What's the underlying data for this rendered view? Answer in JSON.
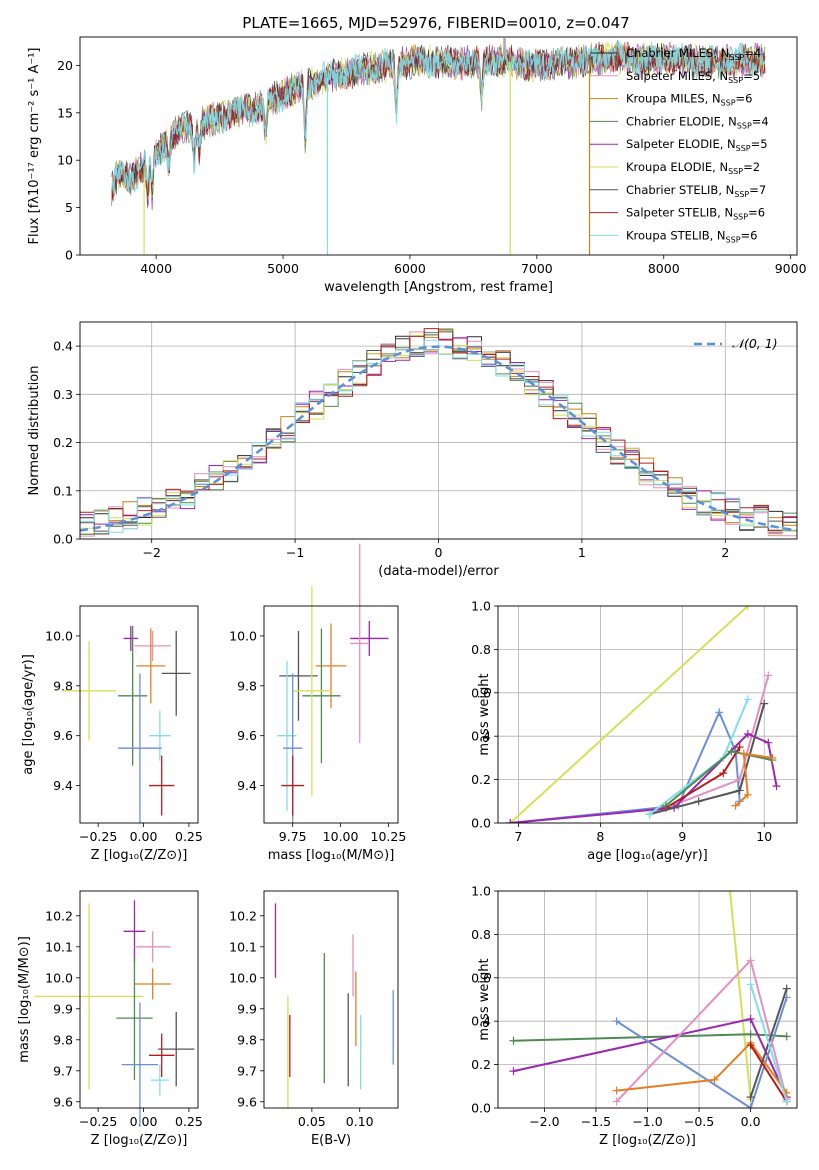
{
  "title": "PLATE=1665, MJD=52976, FIBERID=0010, z=0.047",
  "legend_spectrum": [
    {
      "label": "Chabrier MILES, N",
      "n": "4",
      "color": "#2b2b2b"
    },
    {
      "label": "Salpeter MILES, N",
      "n": "5",
      "color": "#e58fc3"
    },
    {
      "label": "Kroupa MILES, N",
      "n": "6",
      "color": "#c68414"
    },
    {
      "label": "Chabrier ELODIE, N",
      "n": "4",
      "color": "#4f8a4f"
    },
    {
      "label": "Salpeter ELODIE, N",
      "n": "5",
      "color": "#9b27b0"
    },
    {
      "label": "Kroupa ELODIE, N",
      "n": "2",
      "color": "#d4e157"
    },
    {
      "label": "Chabrier STELIB, N",
      "n": "7",
      "color": "#555555"
    },
    {
      "label": "Salpeter STELIB, N",
      "n": "6",
      "color": "#b71c1c"
    },
    {
      "label": "Kroupa STELIB, N",
      "n": "6",
      "color": "#80deea"
    }
  ],
  "legend_sub": "SSP",
  "legend_gauss": "𝒩(0, 1)",
  "chart_data": [
    {
      "type": "line",
      "name": "spectrum",
      "xlabel": "wavelength [Angstrom, rest frame]",
      "ylabel": "Flux [fλ10⁻¹⁷ erg cm⁻² s⁻¹ A⁻¹]",
      "xlim": [
        3400,
        9050
      ],
      "ylim": [
        0,
        23
      ],
      "xticks": [
        4000,
        5000,
        6000,
        7000,
        8000,
        9000
      ],
      "yticks": [
        0,
        5,
        10,
        15,
        20
      ],
      "continuum": [
        [
          3650,
          7
        ],
        [
          3700,
          8.5
        ],
        [
          3800,
          8
        ],
        [
          3950,
          10
        ],
        [
          4050,
          11.5
        ],
        [
          4200,
          13.5
        ],
        [
          4400,
          14
        ],
        [
          4600,
          15
        ],
        [
          4800,
          15.5
        ],
        [
          5000,
          17
        ],
        [
          5200,
          18
        ],
        [
          5400,
          19
        ],
        [
          5600,
          19.5
        ],
        [
          5800,
          20
        ],
        [
          6000,
          20.3
        ],
        [
          6200,
          20.5
        ],
        [
          6400,
          20.2
        ],
        [
          6600,
          20.5
        ],
        [
          6800,
          20.3
        ],
        [
          7000,
          20
        ],
        [
          7200,
          20.3
        ],
        [
          7400,
          20.5
        ],
        [
          7600,
          21
        ],
        [
          7800,
          20.5
        ],
        [
          8000,
          20.8
        ],
        [
          8200,
          20.5
        ],
        [
          8400,
          20.3
        ],
        [
          8600,
          20.5
        ],
        [
          8800,
          20.6
        ]
      ],
      "absorption_lines": [
        [
          3934,
          4
        ],
        [
          3969,
          4
        ],
        [
          4101,
          3
        ],
        [
          4300,
          4
        ],
        [
          4340,
          3
        ],
        [
          4861,
          4
        ],
        [
          5175,
          6
        ],
        [
          5893,
          5
        ],
        [
          6563,
          4
        ]
      ],
      "dropouts": [
        [
          3905,
          "Kroupa ELODIE"
        ],
        [
          5350,
          "Kroupa STELIB"
        ],
        [
          6790,
          "Kroupa ELODIE"
        ],
        [
          7415,
          "Kroupa MILES"
        ]
      ]
    },
    {
      "type": "step",
      "name": "residuals",
      "xlabel": "(data-model)/error",
      "ylabel": "Normed distribution",
      "xlim": [
        -2.5,
        2.5
      ],
      "ylim": [
        0,
        0.45
      ],
      "xticks": [
        -2,
        -1,
        0,
        1,
        2
      ],
      "yticks": [
        0,
        0.1,
        0.2,
        0.3,
        0.4
      ],
      "bins": 50,
      "gaussian": {
        "mu": 0,
        "sigma": 1
      }
    },
    {
      "type": "errorbar",
      "name": "age_vs_Z",
      "xlabel": "Z [log₁₀(Z/Z⊙)]",
      "ylabel": "age  [log₁₀(age/yr)]",
      "xlim": [
        -0.35,
        0.3
      ],
      "ylim": [
        9.25,
        10.12
      ],
      "xticks": [
        -0.25,
        0.0,
        0.25
      ],
      "yticks": [
        9.4,
        9.6,
        9.8,
        10.0
      ],
      "points": [
        {
          "x": 0.05,
          "y": 9.96,
          "dx": 0.1,
          "dy": 0.06,
          "c": "#e58fc3"
        },
        {
          "x": -0.07,
          "y": 9.99,
          "dx": 0.04,
          "dy": 0.05,
          "c": "#9b27b0"
        },
        {
          "x": 0.04,
          "y": 9.88,
          "dx": 0.08,
          "dy": 0.15,
          "c": "#e67e22"
        },
        {
          "x": 0.18,
          "y": 9.85,
          "dx": 0.08,
          "dy": 0.17,
          "c": "#555555"
        },
        {
          "x": -0.06,
          "y": 9.76,
          "dx": 0.08,
          "dy": 0.28,
          "c": "#4f8a4f"
        },
        {
          "x": -0.3,
          "y": 9.78,
          "dx": 0.15,
          "dy": 0.2,
          "c": "#d4e157"
        },
        {
          "x": 0.09,
          "y": 9.6,
          "dx": 0.06,
          "dy": 0.1,
          "c": "#80deea"
        },
        {
          "x": -0.02,
          "y": 9.55,
          "dx": 0.12,
          "dy": 0.3,
          "c": "#6a8fd6"
        },
        {
          "x": 0.1,
          "y": 9.4,
          "dx": 0.07,
          "dy": 0.12,
          "c": "#b71c1c"
        }
      ]
    },
    {
      "type": "errorbar",
      "name": "age_vs_mass",
      "xlabel": "mass [log₁₀(M/M⊙)]",
      "ylabel": "",
      "xlim": [
        9.6,
        10.3
      ],
      "ylim": [
        9.25,
        10.12
      ],
      "xticks": [
        9.75,
        10.0,
        10.25
      ],
      "yticks": [
        9.4,
        9.6,
        9.8,
        10.0
      ],
      "points": [
        {
          "x": 10.15,
          "y": 9.99,
          "dx": 0.1,
          "dy": 0.07,
          "c": "#9b27b0"
        },
        {
          "x": 10.1,
          "y": 9.97,
          "dx": 0.05,
          "dy": 0.4,
          "c": "#e58fc3"
        },
        {
          "x": 9.95,
          "y": 9.88,
          "dx": 0.08,
          "dy": 0.17,
          "c": "#e67e22"
        },
        {
          "x": 9.78,
          "y": 9.84,
          "dx": 0.1,
          "dy": 0.18,
          "c": "#555555"
        },
        {
          "x": 9.9,
          "y": 9.76,
          "dx": 0.1,
          "dy": 0.27,
          "c": "#4f8a4f"
        },
        {
          "x": 9.85,
          "y": 9.78,
          "dx": 0.1,
          "dy": 0.42,
          "c": "#d4e157"
        },
        {
          "x": 9.72,
          "y": 9.6,
          "dx": 0.05,
          "dy": 0.3,
          "c": "#80deea"
        },
        {
          "x": 9.75,
          "y": 9.55,
          "dx": 0.05,
          "dy": 0.3,
          "c": "#6a8fd6"
        },
        {
          "x": 9.75,
          "y": 9.4,
          "dx": 0.06,
          "dy": 0.12,
          "c": "#b71c1c"
        }
      ]
    },
    {
      "type": "line",
      "name": "mass_weight_vs_age",
      "xlabel": "age  [log₁₀(age/yr)]",
      "ylabel": "mass weight",
      "xlim": [
        6.75,
        10.4
      ],
      "ylim": [
        0,
        1.0
      ],
      "xticks": [
        7,
        8,
        9,
        10
      ],
      "yticks": [
        0.0,
        0.2,
        0.4,
        0.6,
        0.8,
        1.0
      ],
      "series": [
        {
          "c": "#d4e157",
          "pts": [
            [
              6.9,
              0
            ],
            [
              9.8,
              1.0
            ]
          ]
        },
        {
          "c": "#6a8fd6",
          "pts": [
            [
              6.9,
              0
            ],
            [
              8.95,
              0.08
            ],
            [
              9.45,
              0.51
            ],
            [
              9.65,
              0.33
            ],
            [
              9.7,
              0.1
            ]
          ]
        },
        {
          "c": "#e58fc3",
          "pts": [
            [
              8.6,
              0.04
            ],
            [
              9.7,
              0.2
            ],
            [
              10.05,
              0.68
            ]
          ]
        },
        {
          "c": "#9b27b0",
          "pts": [
            [
              6.9,
              0
            ],
            [
              8.9,
              0.07
            ],
            [
              9.8,
              0.41
            ],
            [
              10.05,
              0.37
            ],
            [
              10.15,
              0.17
            ]
          ]
        },
        {
          "c": "#555555",
          "pts": [
            [
              8.6,
              0.04
            ],
            [
              9.2,
              0.1
            ],
            [
              9.7,
              0.15
            ],
            [
              10.0,
              0.55
            ]
          ]
        },
        {
          "c": "#b71c1c",
          "pts": [
            [
              8.8,
              0.07
            ],
            [
              9.5,
              0.23
            ],
            [
              9.7,
              0.35
            ]
          ]
        },
        {
          "c": "#80deea",
          "pts": [
            [
              8.6,
              0.04
            ],
            [
              9.5,
              0.3
            ],
            [
              9.8,
              0.57
            ]
          ]
        },
        {
          "c": "#4f8a4f",
          "pts": [
            [
              8.8,
              0.08
            ],
            [
              9.6,
              0.33
            ],
            [
              10.1,
              0.29
            ]
          ]
        },
        {
          "c": "#e67e22",
          "pts": [
            [
              9.65,
              0.08
            ],
            [
              9.8,
              0.13
            ],
            [
              9.75,
              0.32
            ],
            [
              10.1,
              0.3
            ]
          ]
        }
      ]
    },
    {
      "type": "errorbar",
      "name": "mass_vs_Z",
      "xlabel": "Z [log₁₀(Z/Z⊙)]",
      "ylabel": "mass [log₁₀(M/M⊙)]",
      "xlim": [
        -0.35,
        0.3
      ],
      "ylim": [
        9.58,
        10.28
      ],
      "xticks": [
        -0.25,
        0.0,
        0.25
      ],
      "yticks": [
        9.6,
        9.7,
        9.8,
        9.9,
        10.0,
        10.1,
        10.2
      ],
      "points": [
        {
          "x": -0.05,
          "y": 10.15,
          "dx": 0.06,
          "dy": 0.1,
          "c": "#9b27b0"
        },
        {
          "x": 0.05,
          "y": 10.1,
          "dx": 0.1,
          "dy": 0.05,
          "c": "#e58fc3"
        },
        {
          "x": 0.05,
          "y": 9.98,
          "dx": 0.1,
          "dy": 0.05,
          "c": "#e67e22"
        },
        {
          "x": -0.3,
          "y": 9.94,
          "dx": 0.3,
          "dy": 0.3,
          "c": "#d4e157"
        },
        {
          "x": -0.05,
          "y": 9.87,
          "dx": 0.1,
          "dy": 0.2,
          "c": "#4f8a4f"
        },
        {
          "x": 0.18,
          "y": 9.77,
          "dx": 0.1,
          "dy": 0.12,
          "c": "#555555"
        },
        {
          "x": 0.1,
          "y": 9.75,
          "dx": 0.07,
          "dy": 0.07,
          "c": "#b71c1c"
        },
        {
          "x": -0.02,
          "y": 9.72,
          "dx": 0.1,
          "dy": 0.2,
          "c": "#6a8fd6"
        },
        {
          "x": 0.09,
          "y": 9.67,
          "dx": 0.05,
          "dy": 0.05,
          "c": "#80deea"
        }
      ]
    },
    {
      "type": "errorbar",
      "name": "mass_vs_ebv",
      "xlabel": "E(B-V)",
      "ylabel": "",
      "xlim": [
        0.0,
        0.14
      ],
      "ylim": [
        9.58,
        10.28
      ],
      "xticks": [
        0.05,
        0.1
      ],
      "yticks": [
        9.6,
        9.7,
        9.8,
        9.9,
        10.0,
        10.1,
        10.2
      ],
      "points": [
        {
          "x": 0.012,
          "y": 10.12,
          "dy": 0.12,
          "c": "#9b27b0"
        },
        {
          "x": 0.093,
          "y": 10.04,
          "dy": 0.1,
          "c": "#e58fc3"
        },
        {
          "x": 0.096,
          "y": 9.9,
          "dy": 0.12,
          "c": "#e67e22"
        },
        {
          "x": 0.025,
          "y": 9.76,
          "dy": 0.18,
          "c": "#d4e157"
        },
        {
          "x": 0.063,
          "y": 9.87,
          "dy": 0.21,
          "c": "#4f8a4f"
        },
        {
          "x": 0.088,
          "y": 9.8,
          "dy": 0.15,
          "c": "#555555"
        },
        {
          "x": 0.027,
          "y": 9.78,
          "dy": 0.1,
          "c": "#b71c1c"
        },
        {
          "x": 0.135,
          "y": 9.84,
          "dy": 0.12,
          "c": "#6a8fd6"
        },
        {
          "x": 0.101,
          "y": 9.76,
          "dy": 0.12,
          "c": "#80deea"
        }
      ]
    },
    {
      "type": "line",
      "name": "mass_weight_vs_Z",
      "xlabel": "Z [log₁₀(Z/Z⊙)]",
      "ylabel": "mass weight",
      "xlim": [
        -2.45,
        0.45
      ],
      "ylim": [
        0,
        1.0
      ],
      "xticks": [
        -2.0,
        -1.5,
        -1.0,
        -0.5,
        0.0
      ],
      "yticks": [
        0.0,
        0.2,
        0.4,
        0.6,
        0.8,
        1.0
      ],
      "series": [
        {
          "c": "#d4e157",
          "pts": [
            [
              -0.2,
              1.0
            ],
            [
              0.0,
              0.04
            ]
          ]
        },
        {
          "c": "#4f8a4f",
          "pts": [
            [
              -2.3,
              0.31
            ],
            [
              0.0,
              0.34
            ],
            [
              0.35,
              0.33
            ]
          ]
        },
        {
          "c": "#9b27b0",
          "pts": [
            [
              -2.3,
              0.17
            ],
            [
              0.0,
              0.41
            ],
            [
              0.35,
              0.05
            ]
          ]
        },
        {
          "c": "#6a8fd6",
          "pts": [
            [
              -1.3,
              0.4
            ],
            [
              0.0,
              0.0
            ],
            [
              0.35,
              0.51
            ]
          ]
        },
        {
          "c": "#e58fc3",
          "pts": [
            [
              -1.3,
              0.03
            ],
            [
              0.0,
              0.68
            ],
            [
              0.35,
              0.04
            ]
          ]
        },
        {
          "c": "#e67e22",
          "pts": [
            [
              -1.3,
              0.08
            ],
            [
              -0.35,
              0.13
            ],
            [
              0.0,
              0.3
            ],
            [
              0.35,
              0.07
            ]
          ]
        },
        {
          "c": "#555555",
          "pts": [
            [
              0.0,
              0.05
            ],
            [
              0.35,
              0.55
            ]
          ]
        },
        {
          "c": "#b71c1c",
          "pts": [
            [
              0.0,
              0.29
            ],
            [
              0.35,
              0.03
            ]
          ]
        },
        {
          "c": "#80deea",
          "pts": [
            [
              0.0,
              0.57
            ],
            [
              0.35,
              0.03
            ]
          ]
        }
      ]
    }
  ]
}
